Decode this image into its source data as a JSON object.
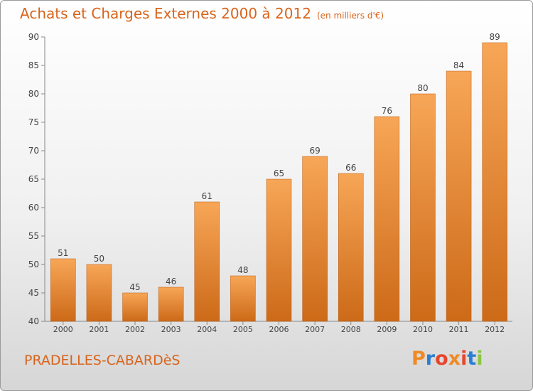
{
  "header": {
    "title": "Achats et Charges Externes 2000 à 2012",
    "unit": "(en milliers d'€)"
  },
  "footer": {
    "commune": "PRADELLES-CABARDèS",
    "logo": "Proxiti"
  },
  "colors": {
    "title": "#d8641c",
    "bar_top": "#f7a657",
    "bar_bottom": "#cc6a18",
    "axis": "#888888",
    "logo": [
      "#f08a24",
      "#2b7fd0",
      "#e8452c",
      "#f08a24",
      "#e8452c",
      "#2b7fd0",
      "#8cc63e"
    ]
  },
  "chart_data": {
    "type": "bar",
    "categories": [
      "2000",
      "2001",
      "2002",
      "2003",
      "2004",
      "2005",
      "2006",
      "2007",
      "2008",
      "2009",
      "2010",
      "2011",
      "2012"
    ],
    "values": [
      51,
      50,
      45,
      46,
      61,
      48,
      65,
      69,
      66,
      76,
      80,
      84,
      89
    ],
    "title": "Achats et Charges Externes 2000 à 2012",
    "ylim": [
      40,
      90
    ],
    "yticks": [
      40,
      45,
      50,
      55,
      60,
      65,
      70,
      75,
      80,
      85,
      90
    ],
    "grid": false,
    "data_labels": true
  }
}
